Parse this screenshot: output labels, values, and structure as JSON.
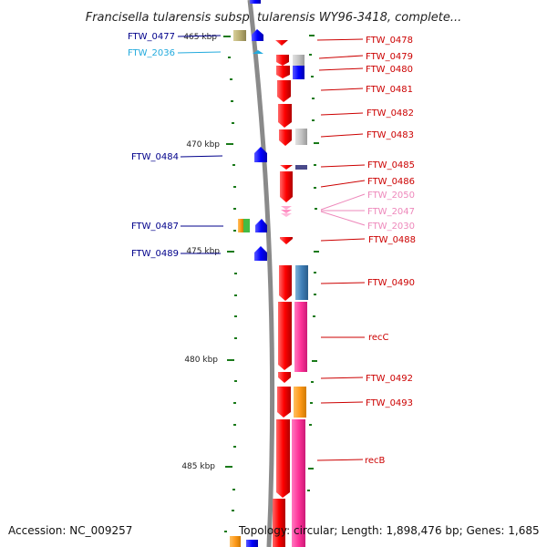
{
  "title": "Francisella tularensis subsp. tularensis WY96-3418, complete...",
  "footer": {
    "accession": "Accession: NC_009257",
    "topology": "Topology: circular; Length: 1,898,476 bp; Genes: 1,685"
  },
  "colors": {
    "backbone": "#8a8a8a",
    "tick": "#1a7a1a",
    "forward_label": "#cc0000",
    "reverse_label": "#00008b",
    "pseudo_label": "#ee88bb",
    "cyan_label": "#22aadd"
  },
  "scale_labels": [
    {
      "text": "465 kbp",
      "kbp": 465
    },
    {
      "text": "470 kbp",
      "kbp": 470
    },
    {
      "text": "475 kbp",
      "kbp": 475
    },
    {
      "text": "480 kbp",
      "kbp": 480
    },
    {
      "text": "485 kbp",
      "kbp": 485
    }
  ],
  "right_labels": [
    {
      "id": "FTW_0478",
      "text": "FTW_0478"
    },
    {
      "id": "FTW_0479",
      "text": "FTW_0479"
    },
    {
      "id": "FTW_0480",
      "text": "FTW_0480"
    },
    {
      "id": "FTW_0481",
      "text": "FTW_0481"
    },
    {
      "id": "FTW_0482",
      "text": "FTW_0482"
    },
    {
      "id": "FTW_0483",
      "text": "FTW_0483"
    },
    {
      "id": "FTW_0485",
      "text": "FTW_0485"
    },
    {
      "id": "FTW_0486",
      "text": "FTW_0486"
    },
    {
      "id": "FTW_2050",
      "text": "FTW_2050"
    },
    {
      "id": "FTW_2047",
      "text": "FTW_2047"
    },
    {
      "id": "FTW_2030",
      "text": "FTW_2030"
    },
    {
      "id": "FTW_0488",
      "text": "FTW_0488"
    },
    {
      "id": "FTW_0490",
      "text": "FTW_0490"
    },
    {
      "id": "recC",
      "text": "recC"
    },
    {
      "id": "FTW_0492",
      "text": "FTW_0492"
    },
    {
      "id": "FTW_0493",
      "text": "FTW_0493"
    },
    {
      "id": "recB",
      "text": "recB"
    }
  ],
  "left_labels": [
    {
      "id": "FTW_0477",
      "text": "FTW_0477"
    },
    {
      "id": "FTW_2036",
      "text": "FTW_2036"
    },
    {
      "id": "FTW_0484",
      "text": "FTW_0484"
    },
    {
      "id": "FTW_0487",
      "text": "FTW_0487"
    },
    {
      "id": "FTW_0489",
      "text": "FTW_0489"
    }
  ]
}
